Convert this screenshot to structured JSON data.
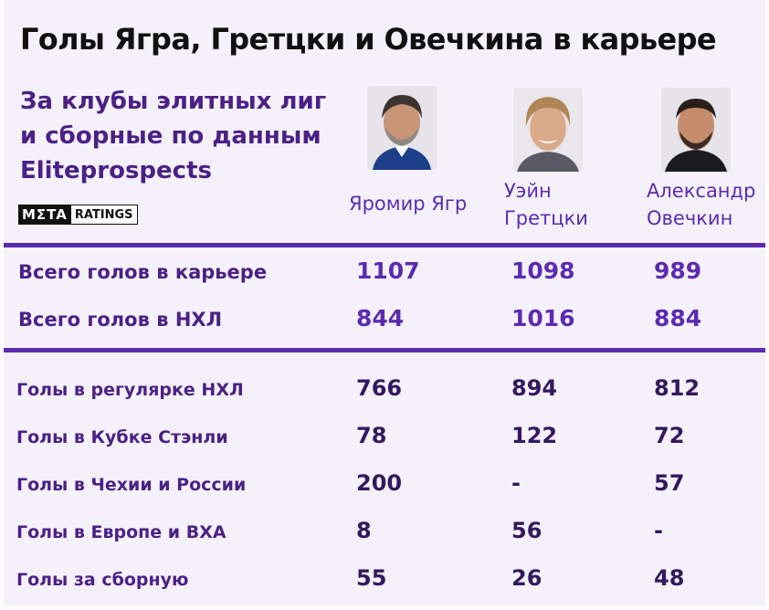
{
  "title": "Голы Ягра, Гретцки и Овечкина в карьере",
  "subtitle": "За клубы элитных лиг и сборные по данным Eliteprospects",
  "logo": {
    "meta": "MΣTA",
    "ratings": "RATINGS"
  },
  "players": [
    {
      "name_line1": "Яромир Ягр",
      "name_line2": "",
      "photo_icon": "jagr-portrait"
    },
    {
      "name_line1": "Уэйн",
      "name_line2": "Гретцки",
      "photo_icon": "gretzky-portrait"
    },
    {
      "name_line1": "Александр",
      "name_line2": "Овечкин",
      "photo_icon": "ovechkin-portrait"
    }
  ],
  "summary_rows": [
    {
      "label": "Всего голов в карьере",
      "values": [
        "1107",
        "1098",
        "989"
      ]
    },
    {
      "label": "Всего голов в НХЛ",
      "values": [
        "844",
        "1016",
        "884"
      ]
    }
  ],
  "detail_rows": [
    {
      "label": "Голы в регулярке НХЛ",
      "values": [
        "766",
        "894",
        "812"
      ]
    },
    {
      "label": "Голы в Кубке Стэнли",
      "values": [
        "78",
        "122",
        "72"
      ]
    },
    {
      "label": "Голы в Чехии и России",
      "values": [
        "200",
        "-",
        "57"
      ]
    },
    {
      "label": "Голы в Европе и ВХА",
      "values": [
        "8",
        "56",
        "-"
      ]
    },
    {
      "label": "Голы за сборную",
      "values": [
        "55",
        "26",
        "48"
      ]
    }
  ],
  "colors": {
    "accent": "#5b2bb0",
    "text_purple": "#4b2185",
    "background": "#f5f1fb"
  }
}
